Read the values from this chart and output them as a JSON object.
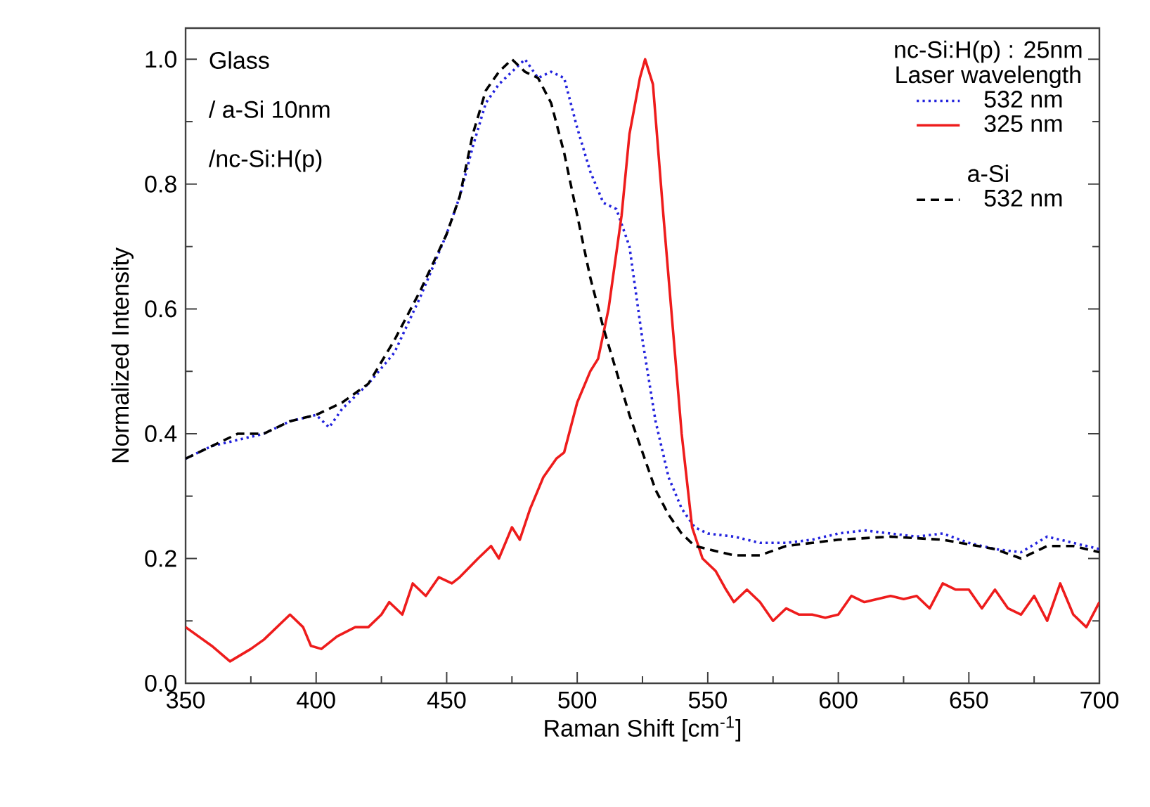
{
  "chart_data": {
    "type": "line",
    "xlabel": "Raman Shift [cm$^{-1}$]",
    "ylabel": "Normalized Intensity",
    "legend_title": "nc-Si:H(p) : 25nm",
    "annotations": [
      "Glass",
      "/ a-Si 10nm",
      "/nc-Si:H(p)",
      "Laser wavelength",
      "a-Si"
    ],
    "xlim": [
      350,
      700
    ],
    "ylim": [
      0,
      1.05
    ],
    "xticks": [
      350,
      400,
      450,
      500,
      550,
      600,
      650,
      700
    ],
    "yticks": [
      {
        "value": 0,
        "label": "0.0"
      },
      {
        "value": 0.2,
        "label": "0.2"
      },
      {
        "value": 0.4,
        "label": "0.4"
      },
      {
        "value": 0.6,
        "label": "0.6"
      },
      {
        "value": 0.8,
        "label": "0.8"
      },
      {
        "value": 1.0,
        "label": "1.0"
      }
    ],
    "legend": "top right",
    "series": [
      {
        "name": "532 nm",
        "color": "#2222dd",
        "line_style": "dotted",
        "x": [
          350,
          360,
          370,
          380,
          390,
          400,
          405,
          410,
          420,
          430,
          440,
          450,
          455,
          460,
          465,
          470,
          475,
          480,
          485,
          490,
          495,
          500,
          505,
          510,
          515,
          520,
          525,
          530,
          535,
          540,
          545,
          550,
          560,
          570,
          580,
          590,
          600,
          610,
          620,
          630,
          640,
          650,
          660,
          670,
          680,
          690,
          700
        ],
        "values": [
          0.36,
          0.38,
          0.39,
          0.4,
          0.42,
          0.43,
          0.41,
          0.44,
          0.48,
          0.53,
          0.62,
          0.72,
          0.78,
          0.86,
          0.93,
          0.96,
          0.98,
          1.0,
          0.97,
          0.98,
          0.97,
          0.89,
          0.82,
          0.77,
          0.76,
          0.7,
          0.55,
          0.42,
          0.33,
          0.28,
          0.25,
          0.24,
          0.235,
          0.225,
          0.225,
          0.23,
          0.24,
          0.245,
          0.24,
          0.235,
          0.24,
          0.225,
          0.215,
          0.21,
          0.235,
          0.225,
          0.215
        ]
      },
      {
        "name": "325 nm",
        "color": "#ee1c1c",
        "line_style": "solid",
        "x": [
          350,
          360,
          367,
          375,
          380,
          390,
          395,
          398,
          402,
          408,
          415,
          420,
          425,
          428,
          433,
          437,
          442,
          447,
          452,
          455,
          462,
          467,
          470,
          475,
          478,
          482,
          487,
          492,
          495,
          500,
          505,
          508,
          512,
          517,
          520,
          524,
          526,
          529,
          533,
          537,
          540,
          544,
          548,
          553,
          557,
          560,
          565,
          570,
          575,
          580,
          585,
          590,
          595,
          600,
          605,
          610,
          615,
          620,
          625,
          630,
          635,
          640,
          645,
          650,
          655,
          660,
          665,
          670,
          675,
          680,
          685,
          690,
          695,
          700
        ],
        "values": [
          0.09,
          0.06,
          0.035,
          0.055,
          0.07,
          0.11,
          0.09,
          0.06,
          0.055,
          0.075,
          0.09,
          0.09,
          0.11,
          0.13,
          0.11,
          0.16,
          0.14,
          0.17,
          0.16,
          0.17,
          0.2,
          0.22,
          0.2,
          0.25,
          0.23,
          0.28,
          0.33,
          0.36,
          0.37,
          0.45,
          0.5,
          0.52,
          0.6,
          0.75,
          0.88,
          0.97,
          1.0,
          0.96,
          0.75,
          0.55,
          0.4,
          0.25,
          0.2,
          0.18,
          0.15,
          0.13,
          0.15,
          0.13,
          0.1,
          0.12,
          0.11,
          0.11,
          0.105,
          0.11,
          0.14,
          0.13,
          0.135,
          0.14,
          0.135,
          0.14,
          0.12,
          0.16,
          0.15,
          0.15,
          0.12,
          0.15,
          0.12,
          0.11,
          0.14,
          0.1,
          0.16,
          0.11,
          0.09,
          0.13
        ]
      },
      {
        "name": "532 nm",
        "color": "#000000",
        "line_style": "dashed",
        "x": [
          350,
          360,
          370,
          380,
          390,
          400,
          410,
          420,
          430,
          440,
          450,
          455,
          460,
          465,
          470,
          475,
          480,
          485,
          490,
          495,
          500,
          505,
          510,
          515,
          520,
          525,
          530,
          535,
          540,
          545,
          550,
          560,
          570,
          580,
          590,
          600,
          620,
          640,
          660,
          670,
          680,
          690,
          700
        ],
        "values": [
          0.36,
          0.38,
          0.4,
          0.4,
          0.42,
          0.43,
          0.45,
          0.48,
          0.55,
          0.63,
          0.72,
          0.78,
          0.88,
          0.95,
          0.98,
          1.0,
          0.98,
          0.97,
          0.93,
          0.85,
          0.75,
          0.65,
          0.57,
          0.5,
          0.43,
          0.37,
          0.31,
          0.27,
          0.24,
          0.22,
          0.215,
          0.205,
          0.205,
          0.22,
          0.225,
          0.23,
          0.235,
          0.23,
          0.215,
          0.2,
          0.22,
          0.22,
          0.21
        ]
      }
    ]
  }
}
